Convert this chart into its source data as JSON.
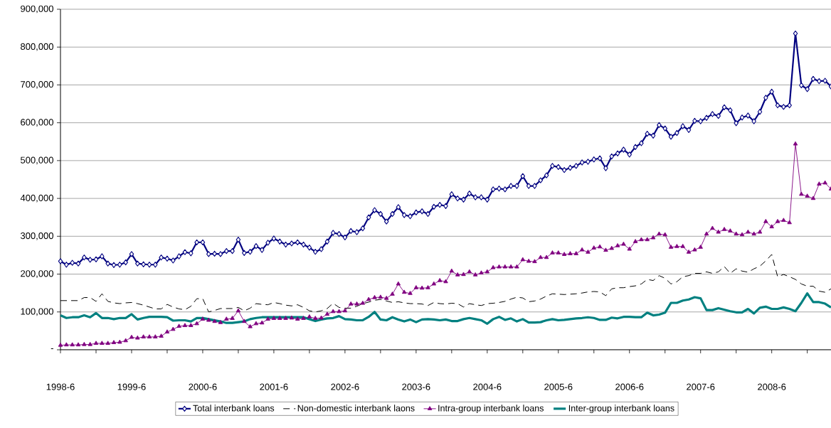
{
  "chart_data": {
    "type": "line",
    "x": [
      "1998-06",
      "1998-07",
      "1998-08",
      "1998-09",
      "1998-10",
      "1998-11",
      "1998-12",
      "1999-01",
      "1999-02",
      "1999-03",
      "1999-04",
      "1999-05",
      "1999-06",
      "1999-07",
      "1999-08",
      "1999-09",
      "1999-10",
      "1999-11",
      "1999-12",
      "2000-01",
      "2000-02",
      "2000-03",
      "2000-04",
      "2000-05",
      "2000-06",
      "2000-07",
      "2000-08",
      "2000-09",
      "2000-10",
      "2000-11",
      "2000-12",
      "2001-01",
      "2001-02",
      "2001-03",
      "2001-04",
      "2001-05",
      "2001-06",
      "2001-07",
      "2001-08",
      "2001-09",
      "2001-10",
      "2001-11",
      "2001-12",
      "2002-01",
      "2002-02",
      "2002-03",
      "2002-04",
      "2002-05",
      "2002-06",
      "2002-07",
      "2002-08",
      "2002-09",
      "2002-10",
      "2002-11",
      "2002-12",
      "2003-01",
      "2003-02",
      "2003-03",
      "2003-04",
      "2003-05",
      "2003-06",
      "2003-07",
      "2003-08",
      "2003-09",
      "2003-10",
      "2003-11",
      "2003-12",
      "2004-01",
      "2004-02",
      "2004-03",
      "2004-04",
      "2004-05",
      "2004-06",
      "2004-07",
      "2004-08",
      "2004-09",
      "2004-10",
      "2004-11",
      "2004-12",
      "2005-01",
      "2005-02",
      "2005-03",
      "2005-04",
      "2005-05",
      "2005-06",
      "2005-07",
      "2005-08",
      "2005-09",
      "2005-10",
      "2005-11",
      "2005-12",
      "2006-01",
      "2006-02",
      "2006-03",
      "2006-04",
      "2006-05",
      "2006-06",
      "2006-07",
      "2006-08",
      "2006-09",
      "2006-10",
      "2006-11",
      "2006-12",
      "2007-01",
      "2007-02",
      "2007-03",
      "2007-04",
      "2007-05",
      "2007-06",
      "2007-07",
      "2007-08",
      "2007-09",
      "2007-10",
      "2007-11",
      "2007-12",
      "2008-01",
      "2008-02",
      "2008-03",
      "2008-04",
      "2008-05",
      "2008-06",
      "2008-07",
      "2008-08",
      "2008-09",
      "2008-10",
      "2008-11",
      "2008-12",
      "2009-01",
      "2009-02",
      "2009-03",
      "2009-04"
    ],
    "series": [
      {
        "name": "Total interbank loans",
        "color": "#000080",
        "marker": "diamond",
        "line_style": "solid",
        "values": [
          234000,
          225000,
          230000,
          228000,
          244000,
          238000,
          239000,
          247000,
          228000,
          224000,
          225000,
          231000,
          253000,
          228000,
          226000,
          225000,
          225000,
          244000,
          241000,
          236000,
          247000,
          258000,
          255000,
          284000,
          284000,
          253000,
          254000,
          253000,
          261000,
          261000,
          291000,
          256000,
          259000,
          274000,
          264000,
          283000,
          294000,
          286000,
          278000,
          281000,
          284000,
          278000,
          270000,
          259000,
          266000,
          286000,
          309000,
          306000,
          297000,
          314000,
          311000,
          321000,
          350000,
          369000,
          359000,
          339000,
          359000,
          377000,
          356000,
          353000,
          363000,
          366000,
          359000,
          378000,
          383000,
          380000,
          411000,
          400000,
          397000,
          413000,
          403000,
          403000,
          397000,
          424000,
          426000,
          424000,
          433000,
          433000,
          459000,
          433000,
          433000,
          448000,
          461000,
          486000,
          483000,
          475000,
          481000,
          486000,
          495000,
          497000,
          503000,
          506000,
          480000,
          511000,
          519000,
          529000,
          516000,
          536000,
          546000,
          571000,
          566000,
          594000,
          585000,
          563000,
          573000,
          591000,
          581000,
          605000,
          604000,
          613000,
          623000,
          618000,
          641000,
          633000,
          599000,
          614000,
          619000,
          604000,
          629000,
          666000,
          682000,
          646000,
          642000,
          646000,
          836000,
          699000,
          689000,
          716000,
          710000,
          711000,
          696000
        ]
      },
      {
        "name": "Non-domestic interbank laons",
        "color": "#000000",
        "marker": "none",
        "line_style": "dashed",
        "values": [
          130000,
          130000,
          130000,
          130000,
          138000,
          138000,
          128000,
          148000,
          128000,
          124000,
          122000,
          124000,
          125000,
          122000,
          118000,
          113000,
          108000,
          108000,
          120000,
          113000,
          108000,
          106000,
          115000,
          135000,
          135000,
          100000,
          104000,
          109000,
          109000,
          109000,
          112000,
          103000,
          110000,
          122000,
          120000,
          119000,
          125000,
          122000,
          118000,
          116000,
          119000,
          112000,
          103000,
          100000,
          103000,
          109000,
          123000,
          112000,
          110000,
          110000,
          115000,
          122000,
          126000,
          131000,
          133000,
          129000,
          125000,
          127000,
          124000,
          122000,
          122000,
          121000,
          117000,
          125000,
          122000,
          121000,
          123000,
          122000,
          113000,
          122000,
          119000,
          117000,
          122000,
          123000,
          125000,
          128000,
          134000,
          139000,
          137000,
          127000,
          129000,
          134000,
          142000,
          148000,
          147000,
          146000,
          147000,
          148000,
          150000,
          153000,
          154000,
          153000,
          143000,
          161000,
          164000,
          164000,
          167000,
          169000,
          174000,
          186000,
          183000,
          196000,
          189000,
          174000,
          180000,
          193000,
          196000,
          202000,
          202000,
          206000,
          202000,
          206000,
          220000,
          202000,
          214000,
          208000,
          205000,
          214000,
          221000,
          235000,
          252000,
          193000,
          199000,
          193000,
          186000,
          174000,
          168000,
          168000,
          155000,
          152000,
          161000
        ]
      },
      {
        "name": "Intra-group interbank loans",
        "color": "#800080",
        "marker": "triangle",
        "line_style": "solid",
        "values": [
          12000,
          13000,
          13000,
          13000,
          14000,
          14000,
          17000,
          17000,
          17000,
          19000,
          20000,
          24000,
          33000,
          31000,
          34000,
          34000,
          34000,
          36000,
          47000,
          54000,
          62000,
          64000,
          64000,
          69000,
          81000,
          78000,
          75000,
          72000,
          81000,
          83000,
          103000,
          75000,
          61000,
          69000,
          71000,
          81000,
          83000,
          83000,
          83000,
          84000,
          81000,
          83000,
          87000,
          83000,
          84000,
          94000,
          101000,
          101000,
          103000,
          121000,
          121000,
          123000,
          133000,
          138000,
          139000,
          136000,
          147000,
          174000,
          152000,
          149000,
          164000,
          163000,
          164000,
          174000,
          183000,
          180000,
          208000,
          198000,
          199000,
          206000,
          198000,
          203000,
          206000,
          217000,
          219000,
          219000,
          219000,
          219000,
          238000,
          234000,
          233000,
          244000,
          244000,
          256000,
          256000,
          252000,
          254000,
          254000,
          264000,
          258000,
          269000,
          272000,
          263000,
          268000,
          275000,
          279000,
          266000,
          286000,
          291000,
          291000,
          296000,
          306000,
          304000,
          271000,
          273000,
          273000,
          258000,
          264000,
          271000,
          306000,
          321000,
          311000,
          318000,
          314000,
          306000,
          304000,
          311000,
          306000,
          311000,
          339000,
          325000,
          339000,
          342000,
          336000,
          544000,
          411000,
          406000,
          400000,
          438000,
          441000,
          425000
        ]
      },
      {
        "name": "Inter-group interbank loans",
        "color": "#008080",
        "marker": "none",
        "line_style": "solid",
        "values": [
          91000,
          84000,
          86000,
          86000,
          91000,
          86000,
          97000,
          84000,
          84000,
          81000,
          84000,
          84000,
          94000,
          80000,
          84000,
          87000,
          87000,
          87000,
          86000,
          77000,
          78000,
          78000,
          75000,
          84000,
          84000,
          81000,
          78000,
          75000,
          71000,
          71000,
          73000,
          75000,
          81000,
          84000,
          86000,
          86000,
          86000,
          86000,
          86000,
          86000,
          86000,
          86000,
          81000,
          76000,
          80000,
          83000,
          84000,
          89000,
          81000,
          80000,
          78000,
          78000,
          87000,
          100000,
          80000,
          78000,
          86000,
          80000,
          75000,
          80000,
          73000,
          80000,
          81000,
          80000,
          78000,
          80000,
          76000,
          76000,
          81000,
          84000,
          81000,
          78000,
          69000,
          81000,
          87000,
          79000,
          83000,
          75000,
          81000,
          72000,
          72000,
          73000,
          78000,
          81000,
          78000,
          79000,
          81000,
          83000,
          84000,
          86000,
          84000,
          79000,
          79000,
          85000,
          83000,
          87000,
          87000,
          86000,
          86000,
          98000,
          91000,
          93000,
          98000,
          124000,
          124000,
          130000,
          133000,
          139000,
          136000,
          105000,
          105000,
          110000,
          106000,
          102000,
          99000,
          99000,
          108000,
          96000,
          111000,
          114000,
          108000,
          108000,
          112000,
          108000,
          102000,
          124000,
          149000,
          126000,
          126000,
          122000,
          112000
        ]
      }
    ],
    "xlim": [
      "1998-06",
      "2009-04"
    ],
    "xticks": [
      {
        "value": "1998-06",
        "label": "1998-6"
      },
      {
        "value": "1998-12",
        "label": null
      },
      {
        "value": "1999-06",
        "label": "1999-6"
      },
      {
        "value": "1999-12",
        "label": null
      },
      {
        "value": "2000-06",
        "label": "2000-6"
      },
      {
        "value": "2000-12",
        "label": null
      },
      {
        "value": "2001-06",
        "label": "2001-6"
      },
      {
        "value": "2001-12",
        "label": null
      },
      {
        "value": "2002-06",
        "label": "2002-6"
      },
      {
        "value": "2002-12",
        "label": null
      },
      {
        "value": "2003-06",
        "label": "2003-6"
      },
      {
        "value": "2003-12",
        "label": null
      },
      {
        "value": "2004-06",
        "label": "2004-6"
      },
      {
        "value": "2004-12",
        "label": null
      },
      {
        "value": "2005-06",
        "label": "2005-6"
      },
      {
        "value": "2005-12",
        "label": null
      },
      {
        "value": "2006-06",
        "label": "2006-6"
      },
      {
        "value": "2006-12",
        "label": null
      },
      {
        "value": "2007-06",
        "label": "2007-6"
      },
      {
        "value": "2007-12",
        "label": null
      },
      {
        "value": "2008-06",
        "label": "2008-6"
      },
      {
        "value": "2008-12",
        "label": null
      }
    ],
    "ylim": [
      0,
      900000
    ],
    "yticks": [
      {
        "value": 0,
        "label": "-"
      },
      {
        "value": 100000,
        "label": "100,000"
      },
      {
        "value": 200000,
        "label": "200,000"
      },
      {
        "value": 300000,
        "label": "300,000"
      },
      {
        "value": 400000,
        "label": "400,000"
      },
      {
        "value": 500000,
        "label": "500,000"
      },
      {
        "value": 600000,
        "label": "600,000"
      },
      {
        "value": 700000,
        "label": "700,000"
      },
      {
        "value": 800000,
        "label": "800,000"
      },
      {
        "value": 900000,
        "label": "900,000"
      }
    ],
    "grid": "y",
    "legend": "bottom"
  }
}
